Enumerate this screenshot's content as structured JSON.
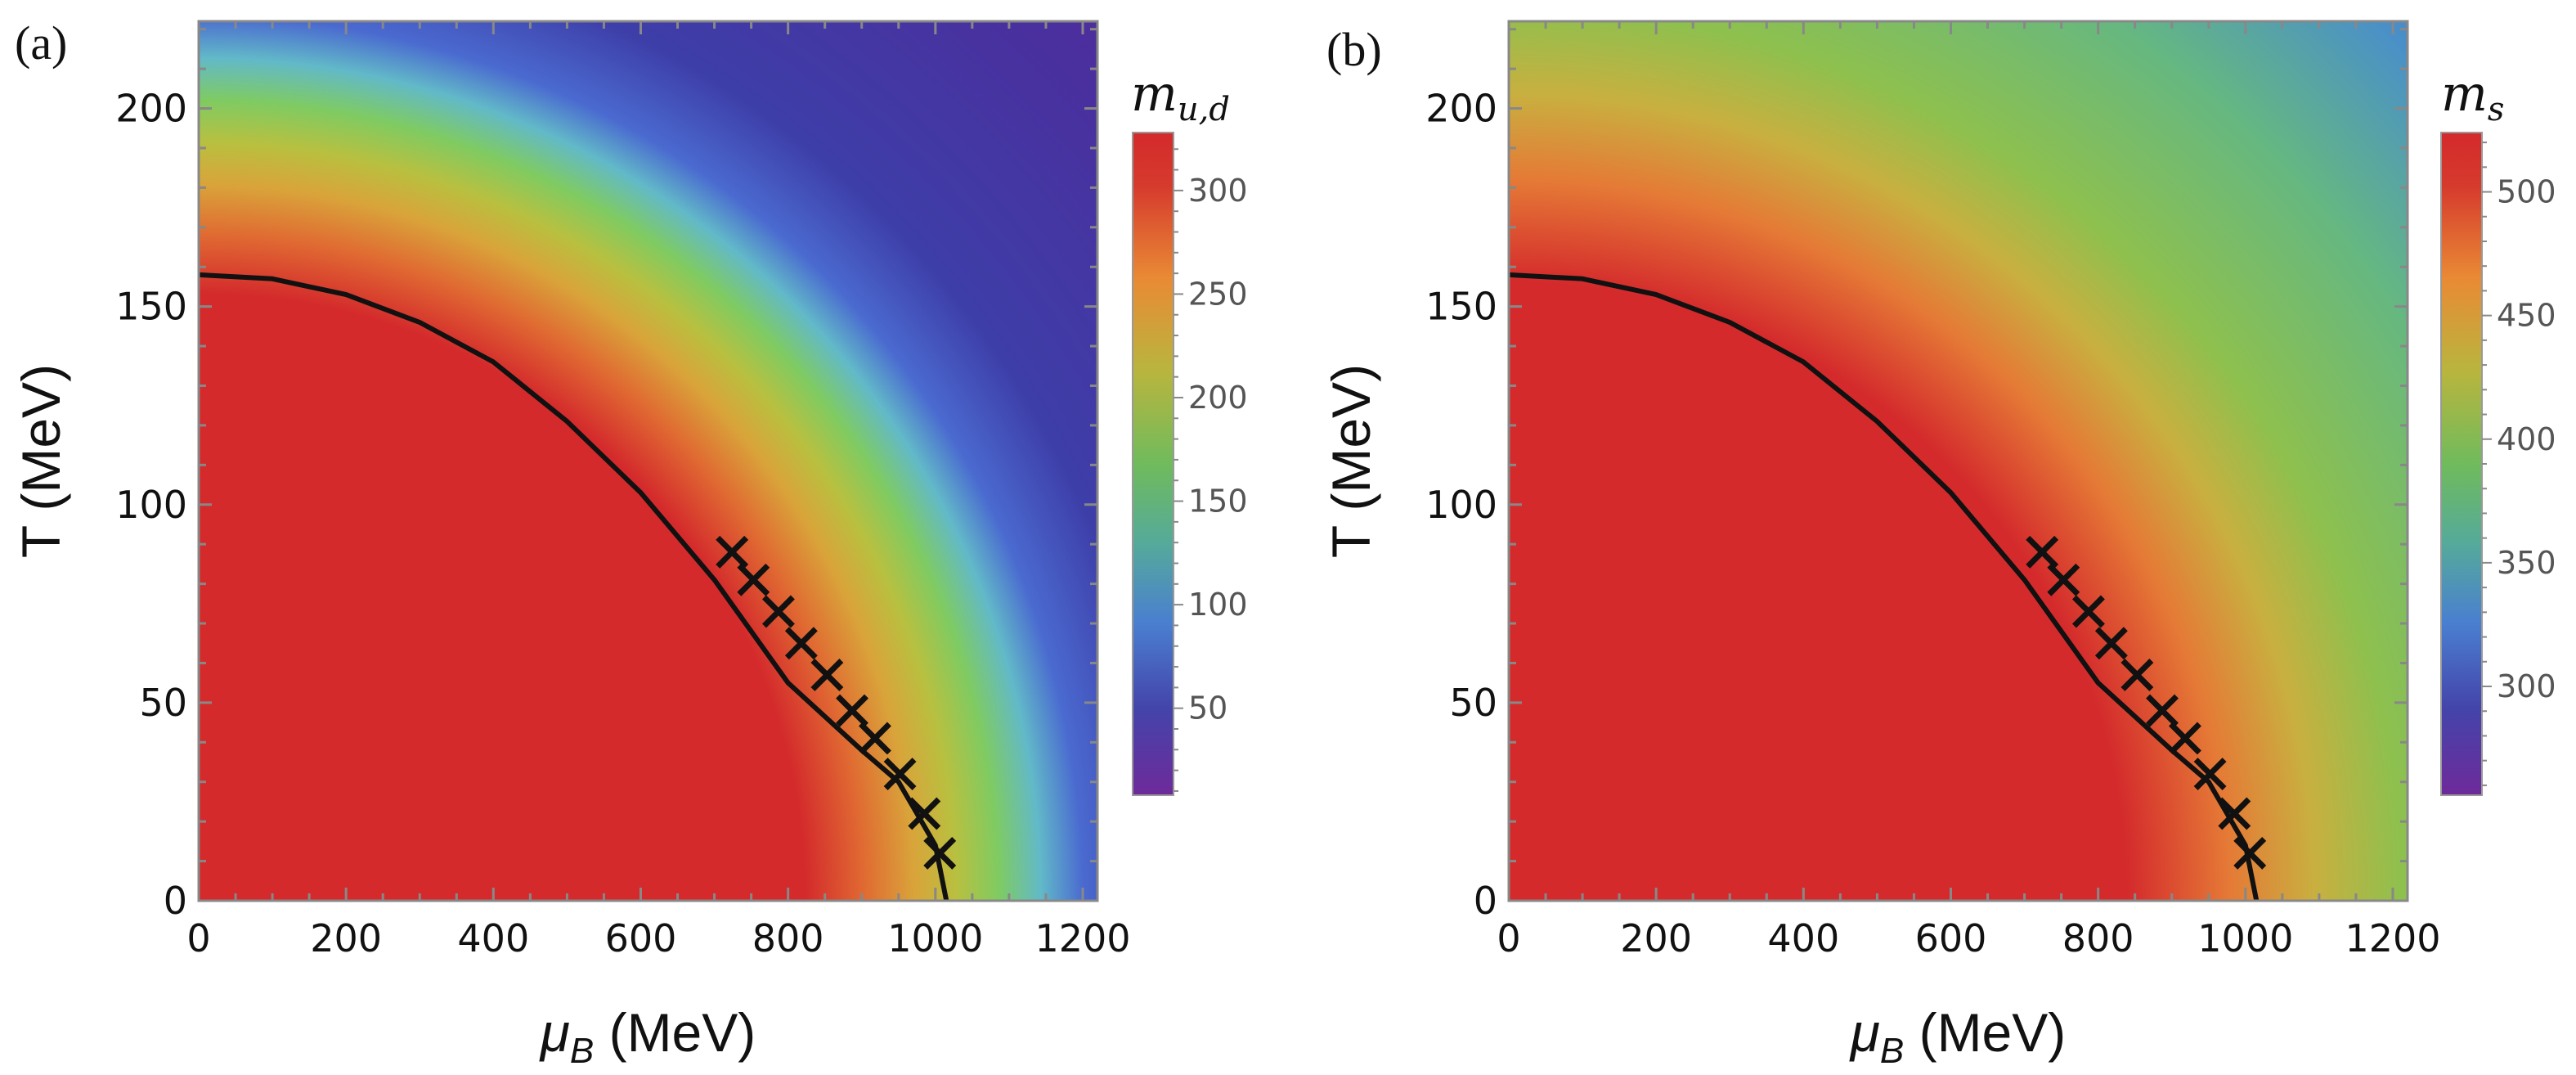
{
  "figure": {
    "panels": [
      "(a)",
      "(b)"
    ]
  },
  "chart_data": [
    {
      "type": "heatmap",
      "panel_label": "(a)",
      "xlabel_symbol": "μ",
      "xlabel_sub": "B",
      "xlabel_unit": " (MeV)",
      "ylabel": "T (MeV)",
      "xlim": [
        0,
        1220
      ],
      "ylim": [
        0,
        222
      ],
      "xticks": [
        0,
        200,
        400,
        600,
        800,
        1000,
        1200
      ],
      "yticks": [
        0,
        50,
        100,
        150,
        200
      ],
      "colorbar": {
        "title_symbol": "m",
        "title_sub": "u,d",
        "range": [
          8,
          328
        ],
        "ticks": [
          50,
          100,
          150,
          200,
          250,
          300
        ]
      },
      "phase_boundary": [
        {
          "mu": 0,
          "T": 158
        },
        {
          "mu": 100,
          "T": 157
        },
        {
          "mu": 200,
          "T": 153
        },
        {
          "mu": 300,
          "T": 146
        },
        {
          "mu": 400,
          "T": 136
        },
        {
          "mu": 500,
          "T": 121
        },
        {
          "mu": 600,
          "T": 103
        },
        {
          "mu": 700,
          "T": 81
        },
        {
          "mu": 800,
          "T": 55
        },
        {
          "mu": 900,
          "T": 38
        },
        {
          "mu": 950,
          "T": 30
        },
        {
          "mu": 1000,
          "T": 14
        },
        {
          "mu": 1015,
          "T": 0
        }
      ],
      "markers": [
        {
          "mu": 724,
          "T": 88
        },
        {
          "mu": 753,
          "T": 81
        },
        {
          "mu": 787,
          "T": 73
        },
        {
          "mu": 818,
          "T": 65
        },
        {
          "mu": 853,
          "T": 57
        },
        {
          "mu": 887,
          "T": 48
        },
        {
          "mu": 918,
          "T": 41
        },
        {
          "mu": 952,
          "T": 32
        },
        {
          "mu": 985,
          "T": 22
        },
        {
          "mu": 1006,
          "T": 12
        }
      ]
    },
    {
      "type": "heatmap",
      "panel_label": "(b)",
      "xlabel_symbol": "μ",
      "xlabel_sub": "B",
      "xlabel_unit": " (MeV)",
      "ylabel": "T (MeV)",
      "xlim": [
        0,
        1220
      ],
      "ylim": [
        0,
        222
      ],
      "xticks": [
        0,
        200,
        400,
        600,
        800,
        1000,
        1200
      ],
      "yticks": [
        0,
        50,
        100,
        150,
        200
      ],
      "colorbar": {
        "title_symbol": "m",
        "title_sub": "s",
        "range": [
          256,
          524
        ],
        "ticks": [
          300,
          350,
          400,
          450,
          500
        ]
      },
      "phase_boundary": [
        {
          "mu": 0,
          "T": 158
        },
        {
          "mu": 100,
          "T": 157
        },
        {
          "mu": 200,
          "T": 153
        },
        {
          "mu": 300,
          "T": 146
        },
        {
          "mu": 400,
          "T": 136
        },
        {
          "mu": 500,
          "T": 121
        },
        {
          "mu": 600,
          "T": 103
        },
        {
          "mu": 700,
          "T": 81
        },
        {
          "mu": 800,
          "T": 55
        },
        {
          "mu": 900,
          "T": 38
        },
        {
          "mu": 950,
          "T": 30
        },
        {
          "mu": 1000,
          "T": 14
        },
        {
          "mu": 1015,
          "T": 0
        }
      ],
      "markers": [
        {
          "mu": 724,
          "T": 88
        },
        {
          "mu": 753,
          "T": 81
        },
        {
          "mu": 787,
          "T": 73
        },
        {
          "mu": 818,
          "T": 65
        },
        {
          "mu": 853,
          "T": 57
        },
        {
          "mu": 887,
          "T": 48
        },
        {
          "mu": 918,
          "T": 41
        },
        {
          "mu": 952,
          "T": 32
        },
        {
          "mu": 985,
          "T": 22
        },
        {
          "mu": 1006,
          "T": 12
        }
      ]
    }
  ]
}
